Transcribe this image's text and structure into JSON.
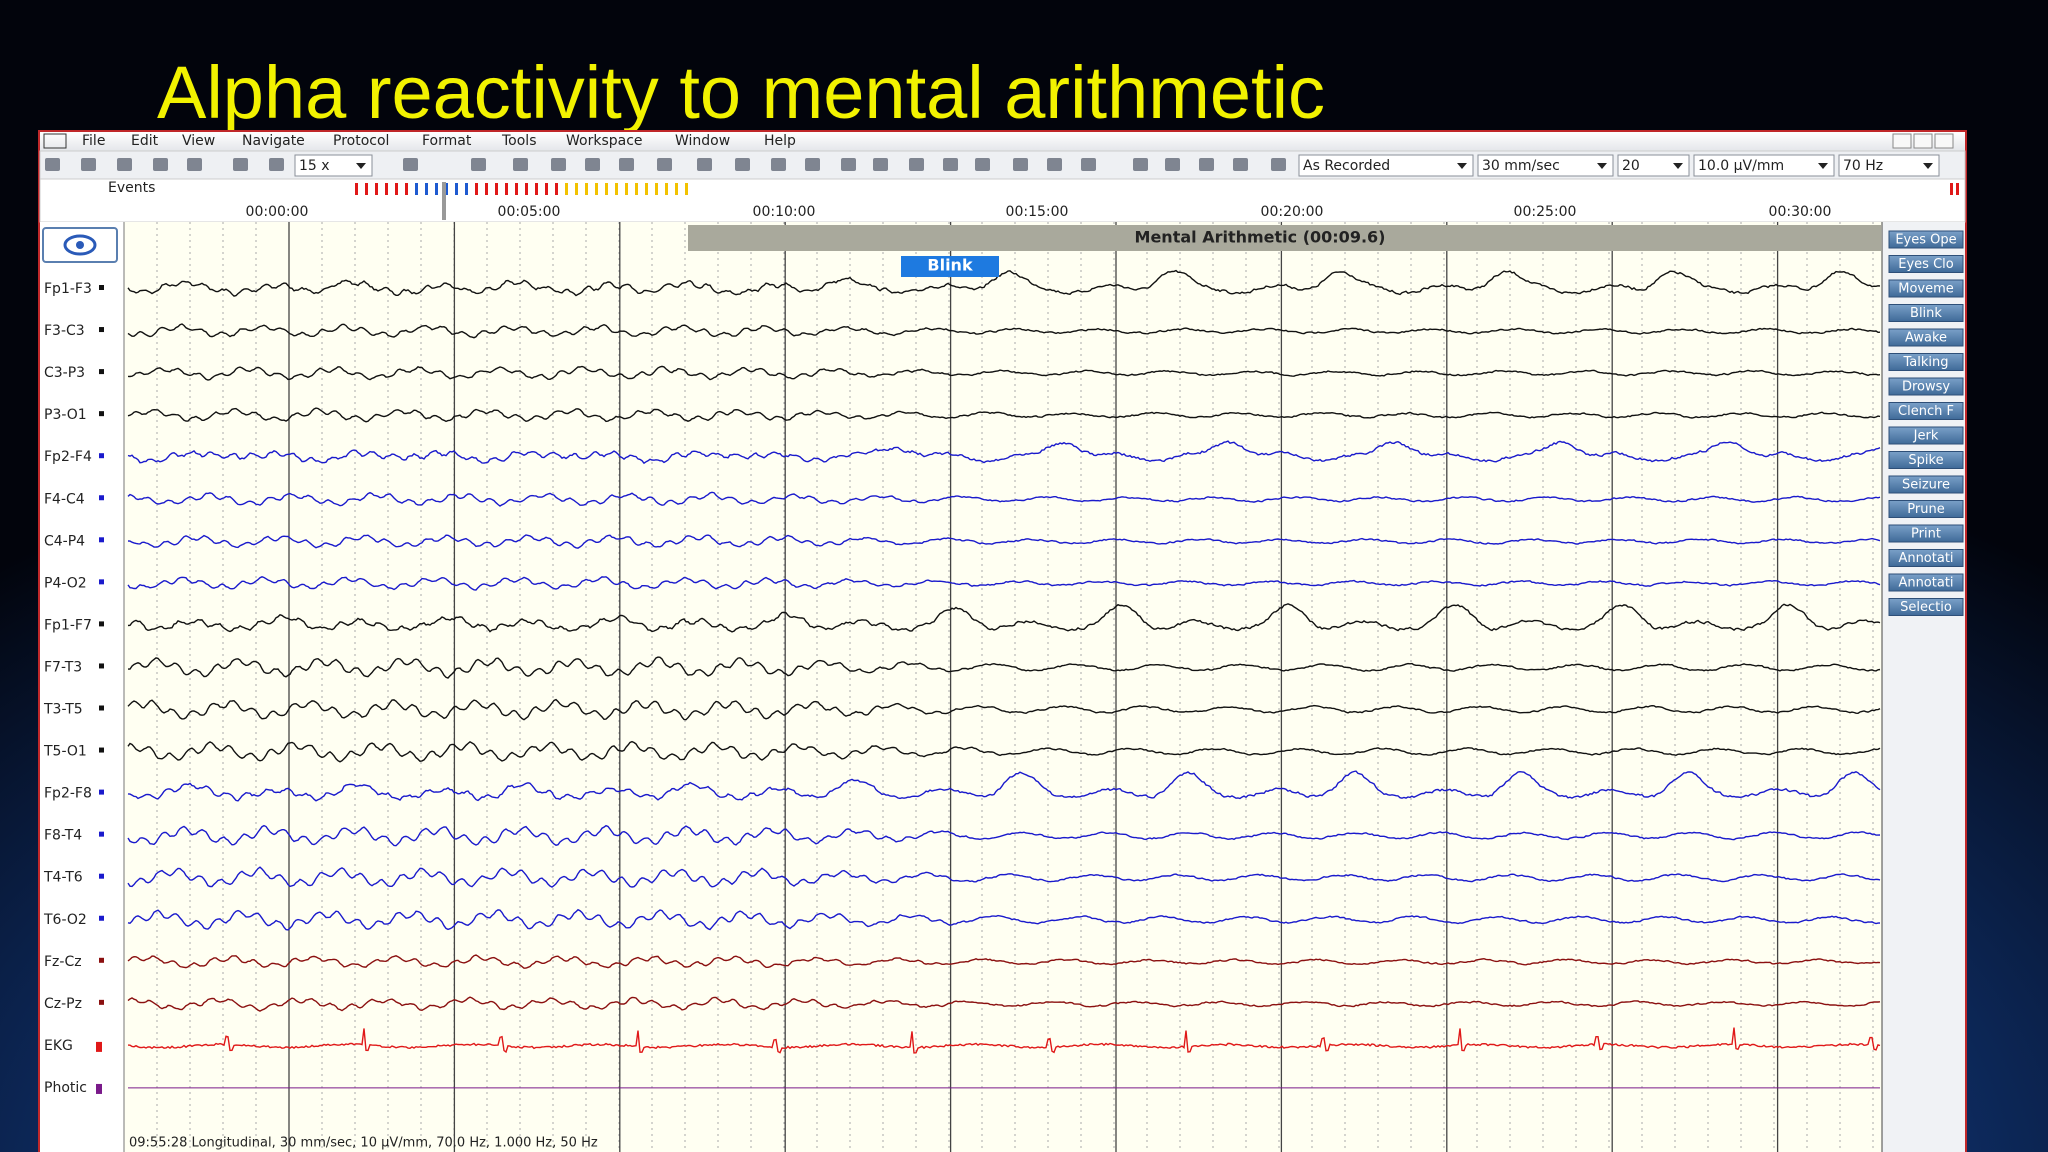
{
  "title": "Alpha reactivity to mental arithmetic",
  "menu": [
    "File",
    "Edit",
    "View",
    "Navigate",
    "Protocol",
    "Format",
    "Tools",
    "Workspace",
    "Window",
    "Help"
  ],
  "toolbar": {
    "zoom": "15 x",
    "montage": "As Recorded",
    "speed": "30 mm/sec",
    "channel_count": "20",
    "sensitivity": "10.0 µV/mm",
    "filter": "70 Hz"
  },
  "timeline": {
    "label": "Events",
    "times": [
      "00:00:00",
      "00:05:00",
      "00:10:00",
      "00:15:00",
      "00:20:00",
      "00:25:00",
      "00:30:00"
    ]
  },
  "banner": "Mental Arithmetic (00:09.6)",
  "event": "Blink",
  "channels": [
    {
      "label": "Fp1-F3",
      "color": "#111111"
    },
    {
      "label": "F3-C3",
      "color": "#111111"
    },
    {
      "label": "C3-P3",
      "color": "#111111"
    },
    {
      "label": "P3-O1",
      "color": "#111111"
    },
    {
      "label": "Fp2-F4",
      "color": "#1a1acc"
    },
    {
      "label": "F4-C4",
      "color": "#1a1acc"
    },
    {
      "label": "C4-P4",
      "color": "#1a1acc"
    },
    {
      "label": "P4-O2",
      "color": "#1a1acc"
    },
    {
      "label": "Fp1-F7",
      "color": "#111111"
    },
    {
      "label": "F7-T3",
      "color": "#111111"
    },
    {
      "label": "T3-T5",
      "color": "#111111"
    },
    {
      "label": "T5-O1",
      "color": "#111111"
    },
    {
      "label": "Fp2-F8",
      "color": "#1a1acc"
    },
    {
      "label": "F8-T4",
      "color": "#1a1acc"
    },
    {
      "label": "T4-T6",
      "color": "#1a1acc"
    },
    {
      "label": "T6-O2",
      "color": "#1a1acc"
    },
    {
      "label": "Fz-Cz",
      "color": "#8b1010"
    },
    {
      "label": "Cz-Pz",
      "color": "#8b1010"
    },
    {
      "label": "EKG",
      "color": "#e01818"
    },
    {
      "label": "Photic",
      "color": "#7a1a8a"
    }
  ],
  "buttons": [
    "Eyes Ope",
    "Eyes Clo",
    "Moveme",
    "Blink",
    "Awake",
    "Talking",
    "Drowsy",
    "Clench F",
    "Jerk",
    "Spike",
    "Seizure",
    "Prune",
    "Print",
    "Annotati",
    "Annotati",
    "Selectio"
  ],
  "status": "09:55:28 Longitudinal, 30 mm/sec, 10 µV/mm, 70.0 Hz, 1.000 Hz, 50 Hz"
}
